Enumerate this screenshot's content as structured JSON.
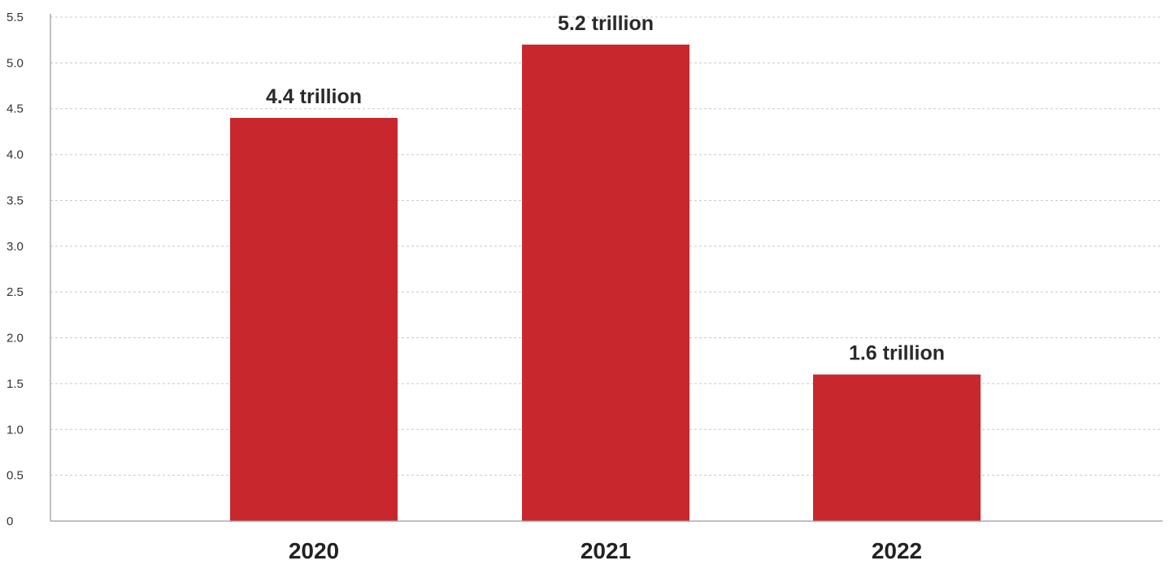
{
  "colors": {
    "bar": "#c8282d",
    "grid": "#c8c8c8",
    "text": "#222222",
    "background": "#ffffff"
  },
  "chart_data": {
    "type": "bar",
    "title": "",
    "xlabel": "",
    "ylabel": "",
    "categories": [
      "2020",
      "2021",
      "2022"
    ],
    "values": [
      4.4,
      5.2,
      1.6
    ],
    "data_labels": [
      "4.4 trillion",
      "5.2 trillion",
      "1.6 trillion"
    ],
    "ylim": [
      0,
      5.5
    ],
    "y_ticks": [
      "0",
      "0.5",
      "1.0",
      "1.5",
      "2.0",
      "2.5",
      "3.0",
      "3.5",
      "4.0",
      "4.5",
      "5.0",
      "5.5"
    ],
    "grid": true,
    "legend": "none"
  }
}
